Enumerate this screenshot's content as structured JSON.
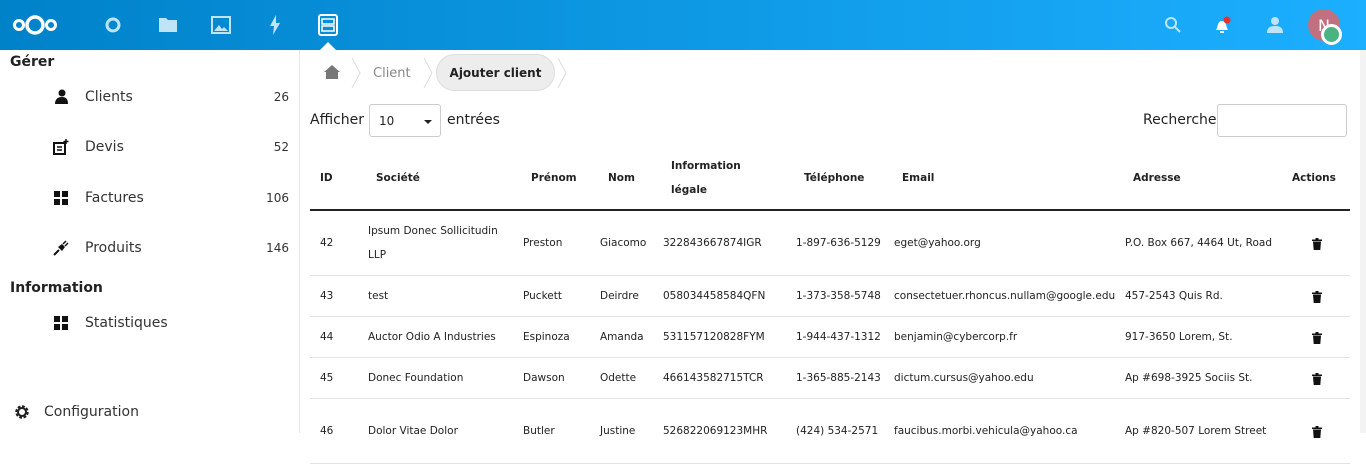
{
  "header": {
    "apps": [
      "dashboard",
      "files",
      "photos",
      "activity",
      "gestion"
    ],
    "active_app": "gestion",
    "avatar_initial": "N",
    "colors": {
      "bar_start": "#0082c9",
      "bar_end": "#1cafff",
      "notification_dot": "#e9322d",
      "status": "#49b382",
      "avatar": "#c0707e"
    }
  },
  "sidebar": {
    "section1": "Gérer",
    "items": [
      {
        "label": "Clients",
        "count": "26",
        "icon": "user-icon"
      },
      {
        "label": "Devis",
        "count": "52",
        "icon": "document-add-icon"
      },
      {
        "label": "Factures",
        "count": "106",
        "icon": "grid-icon"
      },
      {
        "label": "Produits",
        "count": "146",
        "icon": "plug-icon"
      }
    ],
    "section2": "Information",
    "items2": [
      {
        "label": "Statistiques",
        "icon": "grid-icon"
      }
    ],
    "settings": "Configuration"
  },
  "breadcrumb": {
    "items": [
      "Client"
    ],
    "action": "Ajouter client"
  },
  "controls": {
    "show_label": "Afficher",
    "page_size": "10",
    "entries_label": "entrées",
    "search_label": "Recherche",
    "search_value": ""
  },
  "table": {
    "columns": [
      "ID",
      "Société",
      "Prénom",
      "Nom",
      "Information légale",
      "Téléphone",
      "Email",
      "Adresse",
      "Actions"
    ],
    "rows": [
      [
        "42",
        "Ipsum Donec Sollicitudin LLP",
        "Preston",
        "Giacomo",
        "322843667874IGR",
        "1-897-636-5129",
        "eget@yahoo.org",
        "P.O. Box 667, 4464 Ut, Road"
      ],
      [
        "43",
        "test",
        "Puckett",
        "Deirdre",
        "058034458584QFN",
        "1-373-358-5748",
        "consectetuer.rhoncus.nullam@google.edu",
        "457-2543 Quis Rd."
      ],
      [
        "44",
        "Auctor Odio A Industries",
        "Espinoza",
        "Amanda",
        "531157120828FYM",
        "1-944-437-1312",
        "benjamin@cybercorp.fr",
        "917-3650 Lorem, St."
      ],
      [
        "45",
        "Donec Foundation",
        "Dawson",
        "Odette",
        "466143582715TCR",
        "1-365-885-2143",
        "dictum.cursus@yahoo.edu",
        "Ap #698-3925 Sociis St."
      ],
      [
        "46",
        "Dolor Vitae Dolor",
        "Butler",
        "Justine",
        "526822069123MHR",
        "(424) 534-2571",
        "faucibus.morbi.vehicula@yahoo.ca",
        "Ap #820-507 Lorem Street"
      ]
    ]
  }
}
